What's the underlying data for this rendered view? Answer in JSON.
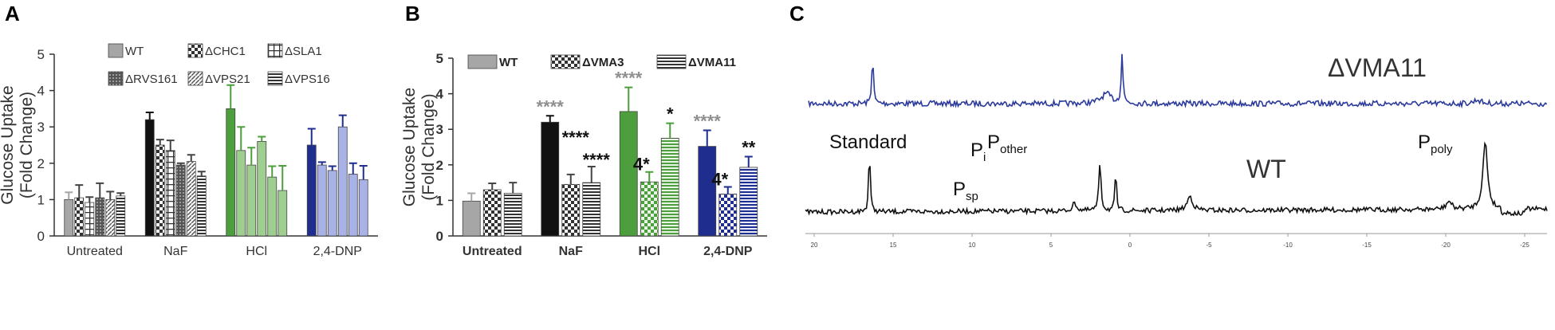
{
  "colors": {
    "wt": "#a6a6a6",
    "naf": "#111111",
    "hcl": "#4d9e3c",
    "dnp": "#1f2d8f",
    "sig_gray": "#8f8f8f",
    "sig_black": "#111111",
    "spectrum_top": "#2b3a9c",
    "spectrum_bottom": "#111111"
  },
  "chart_data": [
    {
      "panel": "A",
      "type": "bar",
      "ylabel": [
        "Glucose Uptake",
        "(Fold Change)"
      ],
      "ylim": [
        0,
        5
      ],
      "yticks": [
        "0",
        "1",
        "2",
        "3",
        "4",
        "5"
      ],
      "categories": [
        "Untreated",
        "NaF",
        "HCl",
        "2,4-DNP"
      ],
      "legend": [
        "WT",
        "ΔCHC1",
        "ΔSLA1",
        "ΔRVS161",
        "ΔVPS21",
        "ΔVPS16"
      ],
      "series": [
        {
          "name": "WT",
          "pattern": "solid",
          "values": [
            1.0,
            3.2,
            3.5,
            2.5
          ],
          "errors": [
            0.2,
            0.2,
            0.65,
            0.45
          ]
        },
        {
          "name": "ΔCHC1",
          "pattern": "checker",
          "values": [
            1.05,
            2.5,
            2.35,
            1.95
          ],
          "errors": [
            0.35,
            0.15,
            0.65,
            0.08
          ]
        },
        {
          "name": "ΔSLA1",
          "pattern": "grid",
          "values": [
            0.92,
            2.35,
            1.95,
            1.8
          ],
          "errors": [
            0.15,
            0.28,
            0.48,
            0.12
          ]
        },
        {
          "name": "ΔRVS161",
          "pattern": "dots",
          "values": [
            1.05,
            1.95,
            2.6,
            3.0
          ],
          "errors": [
            0.4,
            0.05,
            0.13,
            0.32
          ]
        },
        {
          "name": "ΔVPS21",
          "pattern": "diagonal",
          "values": [
            1.0,
            2.05,
            1.62,
            1.7
          ],
          "errors": [
            0.22,
            0.18,
            0.3,
            0.3
          ]
        },
        {
          "name": "ΔVPS16",
          "pattern": "hlines",
          "values": [
            1.1,
            1.65,
            1.25,
            1.55
          ],
          "errors": [
            0.08,
            0.12,
            0.68,
            0.38
          ]
        }
      ]
    },
    {
      "panel": "B",
      "type": "bar",
      "ylabel": [
        "Glucose Uptake",
        "(Fold Change)"
      ],
      "ylim": [
        0,
        5
      ],
      "yticks": [
        "0",
        "1",
        "2",
        "3",
        "4",
        "5"
      ],
      "categories": [
        "Untreated",
        "NaF",
        "HCl",
        "2,4-DNP"
      ],
      "legend": [
        "WT",
        "ΔVMA3",
        "ΔVMA11"
      ],
      "series": [
        {
          "name": "WT",
          "pattern": "solid",
          "values": [
            0.98,
            3.2,
            3.5,
            2.52
          ],
          "errors": [
            0.22,
            0.18,
            0.68,
            0.45
          ]
        },
        {
          "name": "ΔVMA3",
          "pattern": "checker",
          "values": [
            1.3,
            1.45,
            1.52,
            1.18
          ],
          "errors": [
            0.18,
            0.28,
            0.28,
            0.2
          ]
        },
        {
          "name": "ΔVMA11",
          "pattern": "hlines",
          "values": [
            1.2,
            1.5,
            2.75,
            1.93
          ],
          "errors": [
            0.3,
            0.45,
            0.42,
            0.3
          ]
        }
      ],
      "annotations": [
        {
          "text": "****",
          "category": "NaF",
          "series": "WT",
          "color": "gray"
        },
        {
          "text": "****",
          "category": "NaF",
          "series": "ΔVMA3",
          "color": "black"
        },
        {
          "text": "****",
          "category": "NaF",
          "series": "ΔVMA11",
          "color": "black"
        },
        {
          "text": "****",
          "category": "HCl",
          "series": "WT",
          "color": "gray"
        },
        {
          "text": "4*",
          "category": "HCl",
          "series": "ΔVMA3",
          "color": "black"
        },
        {
          "text": "*",
          "category": "HCl",
          "series": "ΔVMA11",
          "color": "black"
        },
        {
          "text": "****",
          "category": "2,4-DNP",
          "series": "WT",
          "color": "gray"
        },
        {
          "text": "4*",
          "category": "2,4-DNP",
          "series": "ΔVMA3",
          "color": "black"
        },
        {
          "text": "**",
          "category": "2,4-DNP",
          "series": "ΔVMA11",
          "color": "black"
        }
      ]
    },
    {
      "panel": "C",
      "type": "line",
      "series": [
        {
          "name": "ΔVMA11"
        },
        {
          "name": "WT"
        }
      ],
      "peak_labels": [
        {
          "text": "Standard",
          "ppm": 16.5
        },
        {
          "text": "P",
          "sub": "i",
          "ppm": 1.9
        },
        {
          "text": "P",
          "sub": "other",
          "ppm": 0.6
        },
        {
          "text": "P",
          "sub": "sp",
          "ppm": 3.5
        },
        {
          "text": "P",
          "sub": "poly",
          "ppm": -22.5
        }
      ],
      "xticks": [
        "20",
        "15",
        "10",
        "5",
        "0",
        "-5",
        "-10",
        "-15",
        "-20",
        "-25"
      ]
    }
  ],
  "panels": {
    "a": "A",
    "b": "B",
    "c": "C"
  }
}
